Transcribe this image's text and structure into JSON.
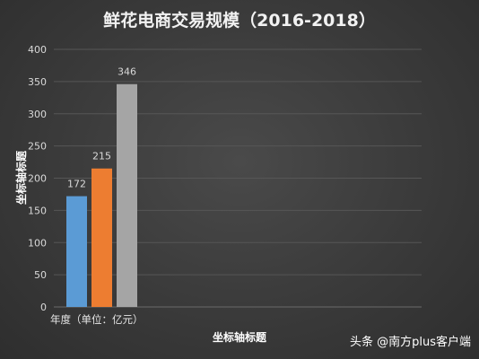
{
  "chart_data": {
    "type": "bar",
    "title": "鲜花电商交易规模（2016-2018）",
    "categories": [
      "年度（单位：亿元）"
    ],
    "series": [
      {
        "values": [
          172
        ],
        "color": "#5b9bd5"
      },
      {
        "values": [
          215
        ],
        "color": "#ed7d31"
      },
      {
        "values": [
          346
        ],
        "color": "#a5a5a5"
      }
    ],
    "data_labels": [
      "172",
      "215",
      "346"
    ],
    "ylim": [
      0,
      400
    ],
    "yticks": [
      0,
      50,
      100,
      150,
      200,
      250,
      300,
      350,
      400
    ],
    "ylabel": "坐标轴标题",
    "xlabel": "坐标轴标题",
    "grid": true,
    "legend": "none"
  },
  "watermark": "头条 @南方plus客户端"
}
